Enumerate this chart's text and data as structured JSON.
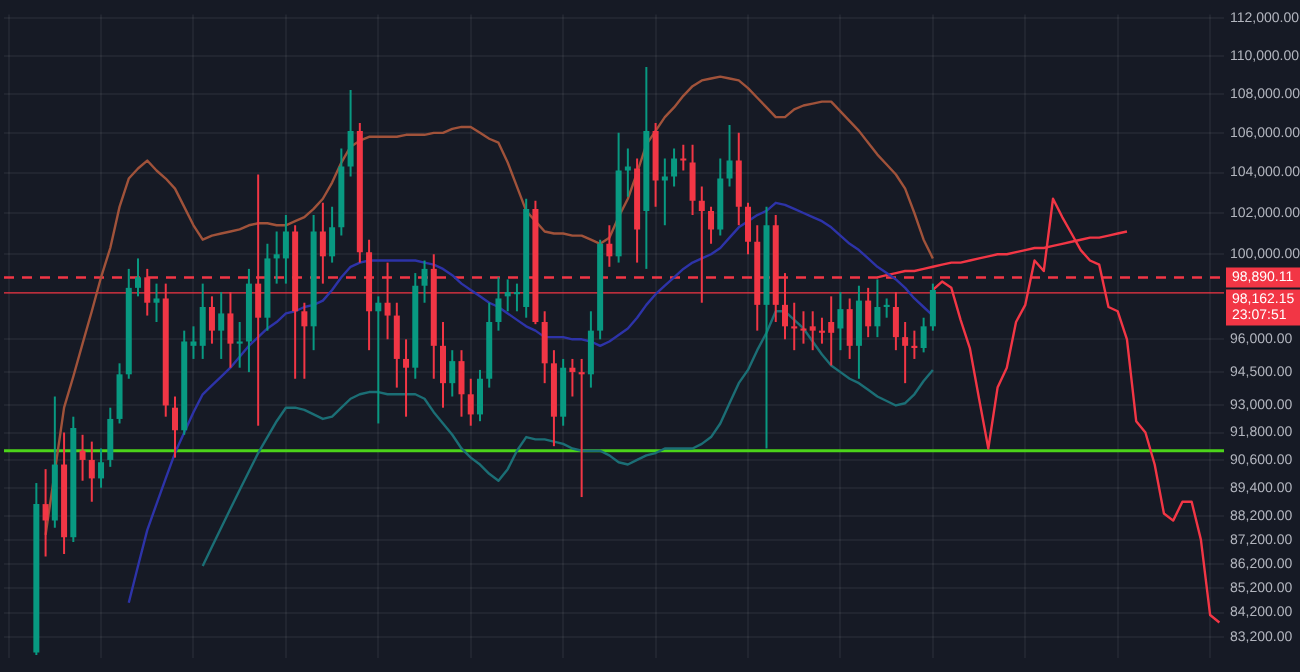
{
  "chart_data": {
    "type": "candlestick",
    "categories": [
      null,
      null,
      null,
      null,
      null,
      null,
      null,
      null,
      null,
      null,
      null,
      null,
      null,
      null,
      null,
      null,
      null,
      null,
      null,
      null,
      null,
      null,
      null,
      null,
      null,
      null,
      null,
      null,
      null,
      null,
      null,
      null,
      null,
      null,
      null,
      null,
      null,
      null,
      null,
      null,
      null,
      null,
      null,
      null,
      null,
      null,
      null,
      null,
      null,
      null,
      null,
      null,
      null,
      null,
      null,
      null,
      null,
      null,
      null,
      null,
      null,
      null,
      null,
      null,
      null,
      null,
      null,
      null,
      null,
      null,
      null,
      null,
      null,
      null,
      null,
      null,
      null,
      null,
      null,
      null,
      null,
      null,
      null,
      null,
      null,
      null,
      null,
      null,
      null,
      null,
      null,
      null,
      null,
      null,
      null,
      null,
      null,
      null,
      null,
      null,
      null,
      null,
      null,
      null,
      null,
      null,
      null,
      null,
      null,
      null,
      null,
      null,
      null,
      null,
      null,
      null,
      null,
      null,
      null,
      null,
      null,
      null,
      null,
      null,
      null,
      null,
      null,
      null,
      null,
      null,
      null,
      null
    ],
    "colors": [
      null,
      null,
      null,
      "#089981",
      "#f23645",
      "#089981",
      "#f23645",
      "#089981",
      "#f23645",
      "#f23645",
      "#089981",
      "#089981",
      "#089981",
      "#089981",
      "#089981",
      "#f23645",
      "#089981",
      "#f23645",
      "#f23645",
      "#089981",
      "#089981",
      "#089981",
      "#f23645",
      "#089981",
      "#f23645",
      "#089981",
      "#089981",
      "#f23645",
      "#089981",
      "#089981",
      "#089981",
      "#f23645",
      "#f23645",
      "#089981",
      "#f23645",
      "#089981",
      "#089981",
      "#089981",
      "#f23645",
      "#f23645",
      "#089981",
      "#f23645",
      "#f23645",
      "#f23645",
      "#089981",
      "#089981",
      "#f23645",
      "#f23645",
      "#089981",
      "#f23645",
      "#f23645",
      "#089981",
      "#089981",
      "#089981",
      "#089981",
      "#089981",
      "#089981",
      "#f23645",
      "#f23645",
      "#f23645",
      "#089981",
      "#f23645",
      "#f23645",
      "#089981",
      "#089981",
      "#f23645",
      "#089981",
      "#089981",
      "#f23645",
      "#089981",
      "#f23645",
      "#089981",
      "#089981",
      "#f23645",
      "#f23645",
      "#f23645",
      "#f23645",
      "#089981",
      "#089981",
      "#f23645",
      "#f23645",
      "#f23645",
      "#089981",
      "#f23645",
      "#f23645",
      "#f23645",
      "#f23645",
      "#f23645",
      "#f23645",
      "#f23645",
      "#089981",
      "#f23645",
      "#089981",
      "#f23645",
      "#089981",
      "#089981",
      "#f23645",
      "#f23645",
      "#f23645",
      "#089981",
      "#089981",
      null,
      null,
      null,
      null,
      null,
      null,
      null,
      null,
      null,
      null,
      null,
      null,
      null,
      null,
      null,
      null,
      null,
      null,
      null,
      null,
      null,
      null,
      null,
      null,
      null,
      null,
      null,
      null,
      null,
      null,
      null
    ],
    "ohlc": [
      null,
      null,
      null,
      [
        82600,
        89600,
        82500,
        88700
      ],
      [
        88700,
        90200,
        86500,
        88000
      ],
      [
        88000,
        93400,
        87700,
        90400
      ],
      [
        90400,
        91800,
        86600,
        87300
      ],
      [
        87300,
        92500,
        87100,
        92000
      ],
      [
        91000,
        91700,
        89700,
        90600
      ],
      [
        90600,
        91400,
        88800,
        89800
      ],
      [
        89800,
        91100,
        89400,
        90500
      ],
      [
        90600,
        92900,
        90300,
        92400
      ],
      [
        92400,
        94900,
        92200,
        94400
      ],
      [
        94400,
        99300,
        94200,
        98400
      ],
      [
        98400,
        99800,
        98000,
        98900
      ],
      [
        98900,
        99300,
        97100,
        97700
      ],
      [
        97700,
        98600,
        96800,
        97900
      ],
      [
        97900,
        98600,
        92500,
        93000
      ],
      [
        92900,
        93400,
        90700,
        91900
      ],
      [
        91900,
        96400,
        91700,
        95900
      ],
      [
        95700,
        96600,
        95100,
        95900
      ],
      [
        95700,
        98600,
        95100,
        97500
      ],
      [
        97500,
        98000,
        95800,
        96400
      ],
      [
        96400,
        98200,
        95100,
        97200
      ],
      [
        97200,
        98200,
        94700,
        95800
      ],
      [
        95800,
        96800,
        94700,
        95900
      ],
      [
        95900,
        99300,
        94500,
        98600
      ],
      [
        98600,
        103900,
        92100,
        97000
      ],
      [
        97000,
        100500,
        96400,
        99800
      ],
      [
        99800,
        101100,
        98600,
        100000
      ],
      [
        99800,
        101900,
        98600,
        101100
      ],
      [
        101100,
        101400,
        94200,
        97300
      ],
      [
        97300,
        97700,
        94200,
        96600
      ],
      [
        96600,
        101900,
        95500,
        101100
      ],
      [
        101100,
        102500,
        98600,
        99900
      ],
      [
        99900,
        102300,
        99600,
        101300
      ],
      [
        101300,
        105200,
        100900,
        104300
      ],
      [
        104300,
        108200,
        103800,
        106100
      ],
      [
        106100,
        106500,
        99600,
        100100
      ],
      [
        100100,
        100700,
        95500,
        97300
      ],
      [
        97300,
        98000,
        92200,
        97700
      ],
      [
        97700,
        99600,
        96000,
        97100
      ],
      [
        97100,
        97700,
        93800,
        95100
      ],
      [
        95100,
        96000,
        92500,
        94700
      ],
      [
        94700,
        99100,
        94200,
        98500
      ],
      [
        98500,
        99700,
        97700,
        99300
      ],
      [
        99300,
        100000,
        94200,
        95700
      ],
      [
        95700,
        96800,
        92900,
        94000
      ],
      [
        94000,
        95500,
        93400,
        95000
      ],
      [
        95000,
        95500,
        92500,
        93500
      ],
      [
        93500,
        94200,
        92100,
        92600
      ],
      [
        92600,
        94600,
        92300,
        94200
      ],
      [
        94200,
        97700,
        93800,
        96800
      ],
      [
        96800,
        98900,
        96400,
        97900
      ],
      [
        98000,
        98800,
        97300,
        98200
      ],
      [
        98100,
        98600,
        97300,
        98200
      ],
      [
        97500,
        102700,
        97000,
        102200
      ],
      [
        102200,
        102600,
        96700,
        96800
      ],
      [
        96800,
        97300,
        94000,
        94900
      ],
      [
        94900,
        95500,
        91200,
        92500
      ],
      [
        92500,
        95100,
        92100,
        94700
      ],
      [
        94700,
        95100,
        93400,
        94500
      ],
      [
        94500,
        95100,
        89000,
        94400
      ],
      [
        94400,
        97300,
        93800,
        96400
      ],
      [
        96400,
        100700,
        96000,
        100500
      ],
      [
        100500,
        101400,
        99400,
        99900
      ],
      [
        99900,
        106000,
        99600,
        104100
      ],
      [
        104100,
        105200,
        102800,
        104300
      ],
      [
        104200,
        104700,
        99600,
        101200
      ],
      [
        102100,
        109400,
        99300,
        106100
      ],
      [
        106100,
        106500,
        102300,
        103600
      ],
      [
        103600,
        104700,
        101400,
        103800
      ],
      [
        103800,
        105200,
        103300,
        104700
      ],
      [
        104700,
        105400,
        104100,
        104600
      ],
      [
        104500,
        105400,
        101900,
        102600
      ],
      [
        102600,
        103300,
        97700,
        102100
      ],
      [
        102100,
        102300,
        100500,
        101200
      ],
      [
        101200,
        104700,
        100900,
        103700
      ],
      [
        103700,
        106400,
        103300,
        104600
      ],
      [
        104600,
        106000,
        101400,
        102300
      ],
      [
        102300,
        102500,
        100000,
        100600
      ],
      [
        100600,
        101400,
        96400,
        97600
      ],
      [
        97600,
        102300,
        91100,
        101400
      ],
      [
        101400,
        101900,
        96800,
        97600
      ],
      [
        97600,
        99100,
        96000,
        96600
      ],
      [
        96600,
        97700,
        95500,
        96500
      ],
      [
        96500,
        97300,
        95800,
        96400
      ],
      [
        96600,
        97300,
        95500,
        96400
      ],
      [
        96400,
        97000,
        95800,
        96300
      ],
      [
        96800,
        98000,
        94800,
        96300
      ],
      [
        96500,
        98200,
        95500,
        97400
      ],
      [
        97400,
        97900,
        95100,
        95700
      ],
      [
        95700,
        98500,
        94200,
        97800
      ],
      [
        97800,
        98400,
        96100,
        96600
      ],
      [
        96600,
        98800,
        96100,
        97500
      ],
      [
        97500,
        97900,
        97000,
        97600
      ],
      [
        97500,
        98200,
        95500,
        96100
      ],
      [
        96100,
        96800,
        94000,
        95700
      ],
      [
        95700,
        96400,
        95100,
        95600
      ],
      [
        95600,
        97000,
        95400,
        96600
      ],
      [
        96600,
        98600,
        96400,
        98300
      ],
      null,
      null,
      null,
      null,
      null,
      null,
      null,
      null,
      null,
      null,
      null,
      null,
      null,
      null,
      null,
      null,
      null,
      null,
      null,
      null,
      null,
      null,
      null,
      null,
      null,
      null,
      null,
      null,
      null,
      null,
      null
    ],
    "series": [
      {
        "type": "line",
        "color": "#a0523a",
        "values": [
          null,
          null,
          null,
          null,
          87400,
          90100,
          92900,
          94300,
          95800,
          97300,
          98900,
          100300,
          102300,
          103700,
          104200,
          104600,
          104100,
          103700,
          103200,
          102300,
          101400,
          100700,
          100900,
          101000,
          101100,
          101200,
          101400,
          101500,
          101500,
          101400,
          101400,
          101600,
          101800,
          102200,
          102700,
          103500,
          104500,
          105300,
          105600,
          105800,
          105800,
          105800,
          105800,
          105900,
          105900,
          105900,
          106000,
          106000,
          106200,
          106300,
          106300,
          106000,
          105700,
          105500,
          104500,
          103300,
          102100,
          101600,
          101100,
          101000,
          101000,
          100900,
          100900,
          100700,
          100500,
          100800,
          101800,
          102700,
          104000,
          105400,
          106100,
          106800,
          107300,
          107900,
          108400,
          108700,
          108800,
          108900,
          108800,
          108700,
          108300,
          107800,
          107300,
          106800,
          106800,
          107200,
          107400,
          107500,
          107600,
          107600,
          107100,
          106600,
          106100,
          105500,
          104900,
          104400,
          103900,
          103200,
          102000,
          100700,
          99800,
          null,
          null,
          null,
          null,
          null,
          null,
          null,
          null,
          null,
          null,
          null,
          null,
          null,
          null,
          null,
          null,
          null,
          null,
          null,
          null,
          null,
          null,
          null,
          null,
          null,
          null,
          null,
          null,
          null,
          null,
          null
        ]
      },
      {
        "type": "line",
        "color": "#2d33a8",
        "values": [
          null,
          null,
          null,
          null,
          null,
          null,
          null,
          null,
          null,
          null,
          null,
          null,
          null,
          84600,
          86100,
          87600,
          88700,
          89800,
          90900,
          91800,
          92700,
          93500,
          93900,
          94300,
          94700,
          95200,
          95700,
          96100,
          96500,
          96800,
          97200,
          97300,
          97500,
          97600,
          97800,
          98300,
          98900,
          99400,
          99600,
          99700,
          99700,
          99700,
          99700,
          99700,
          99700,
          99600,
          99500,
          99300,
          99000,
          98600,
          98300,
          98000,
          97700,
          97500,
          97200,
          96900,
          96600,
          96400,
          96100,
          96100,
          96100,
          96000,
          96000,
          95900,
          95700,
          95900,
          96200,
          96500,
          97000,
          97600,
          98100,
          98500,
          98900,
          99300,
          99600,
          99800,
          100000,
          100300,
          100800,
          101300,
          101600,
          101900,
          102100,
          102500,
          102400,
          102200,
          102000,
          101800,
          101600,
          101300,
          100900,
          100500,
          100200,
          99800,
          99400,
          99100,
          98800,
          98400,
          97900,
          97500,
          97100,
          null,
          null,
          null,
          null,
          null,
          null,
          null,
          null,
          null,
          null,
          null,
          null,
          null,
          null,
          null,
          null,
          null,
          null,
          null,
          null,
          null,
          null,
          null,
          null,
          null,
          null,
          null,
          null,
          null,
          null,
          null
        ]
      },
      {
        "type": "line",
        "color": "#1b6e75",
        "values": [
          null,
          null,
          null,
          null,
          null,
          null,
          null,
          null,
          null,
          null,
          null,
          null,
          null,
          null,
          null,
          null,
          null,
          null,
          null,
          null,
          null,
          86100,
          86900,
          87700,
          88500,
          89300,
          90100,
          90900,
          91600,
          92300,
          92900,
          92900,
          92800,
          92600,
          92400,
          92500,
          92900,
          93300,
          93500,
          93600,
          93600,
          93500,
          93500,
          93500,
          93500,
          93300,
          92700,
          92200,
          91700,
          91100,
          90700,
          90400,
          90000,
          89700,
          90200,
          91000,
          91600,
          91500,
          91500,
          91400,
          91300,
          91100,
          91000,
          91000,
          91000,
          90800,
          90500,
          90400,
          90600,
          90800,
          90900,
          91100,
          91100,
          91100,
          91100,
          91300,
          91600,
          92200,
          93100,
          94000,
          94600,
          95500,
          96300,
          97300,
          97300,
          96900,
          96500,
          95900,
          95300,
          94800,
          94500,
          94200,
          94000,
          93700,
          93400,
          93200,
          93000,
          93100,
          93500,
          94100,
          94600,
          null,
          null,
          null,
          null,
          null,
          null,
          null,
          null,
          null,
          null,
          null,
          null,
          null,
          null,
          null,
          null,
          null,
          null,
          null,
          null,
          null,
          null,
          null,
          null,
          null,
          null,
          null,
          null,
          null,
          null,
          null
        ]
      },
      {
        "type": "line",
        "color": "#f23645",
        "values": [
          null,
          null,
          null,
          null,
          null,
          null,
          null,
          null,
          null,
          null,
          null,
          null,
          null,
          null,
          null,
          null,
          null,
          null,
          null,
          null,
          null,
          null,
          null,
          null,
          null,
          null,
          null,
          null,
          null,
          null,
          null,
          null,
          null,
          null,
          null,
          null,
          null,
          null,
          null,
          null,
          null,
          null,
          null,
          null,
          null,
          null,
          null,
          null,
          null,
          null,
          null,
          null,
          null,
          null,
          null,
          null,
          null,
          null,
          null,
          null,
          null,
          null,
          null,
          null,
          null,
          null,
          null,
          null,
          null,
          null,
          null,
          null,
          null,
          null,
          null,
          null,
          null,
          null,
          null,
          null,
          null,
          null,
          null,
          null,
          null,
          null,
          null,
          null,
          null,
          null,
          null,
          null,
          null,
          null,
          null,
          null,
          null,
          null,
          null,
          null,
          98300,
          98700,
          98400,
          96900,
          95600,
          93300,
          91100,
          93800,
          94700,
          96800,
          97600,
          99700,
          99200,
          102700,
          101800,
          101000,
          100200,
          99700,
          99500,
          97500,
          97300,
          96000,
          92300,
          91800,
          90400,
          88300,
          88000,
          88800,
          88800,
          87200,
          84100,
          83800
        ]
      },
      {
        "type": "line",
        "color": "#f23645",
        "values": [
          null,
          null,
          null,
          null,
          null,
          null,
          null,
          null,
          null,
          null,
          null,
          null,
          null,
          null,
          null,
          null,
          null,
          null,
          null,
          null,
          null,
          null,
          null,
          null,
          null,
          null,
          null,
          null,
          null,
          null,
          null,
          null,
          null,
          null,
          null,
          null,
          null,
          null,
          null,
          null,
          null,
          null,
          null,
          null,
          null,
          null,
          null,
          null,
          null,
          null,
          null,
          null,
          null,
          null,
          null,
          null,
          null,
          null,
          null,
          null,
          null,
          null,
          null,
          null,
          null,
          null,
          null,
          null,
          null,
          null,
          null,
          null,
          null,
          null,
          null,
          null,
          null,
          null,
          null,
          null,
          null,
          null,
          null,
          null,
          null,
          null,
          null,
          null,
          null,
          null,
          null,
          null,
          null,
          null,
          98900,
          99000,
          99100,
          99200,
          99200,
          99300,
          99400,
          99500,
          99600,
          99600,
          99700,
          99800,
          99900,
          100000,
          100000,
          100100,
          100200,
          100300,
          100300,
          100400,
          100500,
          100600,
          100700,
          100800,
          100800,
          100900,
          101000,
          101100,
          null,
          null,
          null,
          null,
          null,
          null,
          null,
          null,
          null,
          null
        ]
      }
    ],
    "ref_lines": [
      {
        "axis": "y",
        "value": 98890.11,
        "label": "98,890.11",
        "color": "#f23645",
        "line_style": "dashed"
      },
      {
        "axis": "y",
        "value": 98162.15,
        "label": "98,162.15",
        "color": "#f23645"
      },
      {
        "axis": "y",
        "value": 91000,
        "color": "#4cd41a"
      }
    ],
    "annotations": [
      "23:07:51"
    ],
    "log": "y",
    "ylim": [
      82400,
      112200
    ],
    "yticks": [
      {
        "value": 112000,
        "label": "112,000.00"
      },
      {
        "value": 110000,
        "label": "110,000.00"
      },
      {
        "value": 108000,
        "label": "108,000.00"
      },
      {
        "value": 106000,
        "label": "106,000.00"
      },
      {
        "value": 104000,
        "label": "104,000.00"
      },
      {
        "value": 102000,
        "label": "102,000.00"
      },
      {
        "value": 100000,
        "label": "100,000.00"
      },
      {
        "value": 96000,
        "label": "96,000.00"
      },
      {
        "value": 94500,
        "label": "94,500.00"
      },
      {
        "value": 93000,
        "label": "93,000.00"
      },
      {
        "value": 91800,
        "label": "91,800.00"
      },
      {
        "value": 90600,
        "label": "90,600.00"
      },
      {
        "value": 89400,
        "label": "89,400.00"
      },
      {
        "value": 88200,
        "label": "88,200.00"
      },
      {
        "value": 87200,
        "label": "87,200.00"
      },
      {
        "value": 86200,
        "label": "86,200.00"
      },
      {
        "value": 85200,
        "label": "85,200.00"
      },
      {
        "value": 84200,
        "label": "84,200.00"
      },
      {
        "value": 83200,
        "label": "83,200.00"
      }
    ],
    "grid": true,
    "tick_labels": "y"
  }
}
